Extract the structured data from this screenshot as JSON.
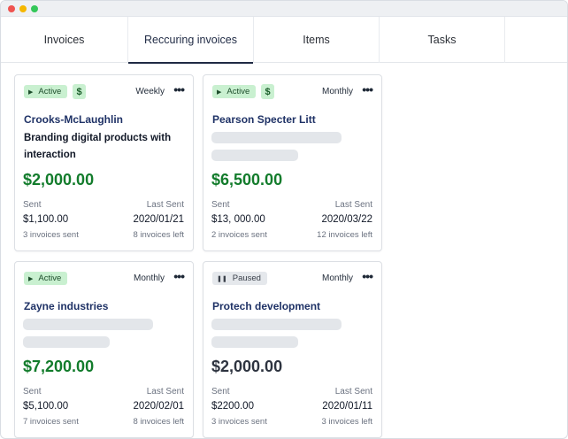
{
  "tabs": [
    {
      "label": "Invoices"
    },
    {
      "label": "Reccuring invoices"
    },
    {
      "label": "Items"
    },
    {
      "label": "Tasks"
    }
  ],
  "cards": [
    {
      "status": "Active",
      "status_icon": "play-icon",
      "has_dollar": true,
      "dollar": "$",
      "frequency": "Weekly",
      "menu": "•••",
      "client": "Crooks-McLaughlin",
      "project": "Branding digital products with interaction",
      "amount": "$2,000.00",
      "sent_label": "Sent",
      "last_sent_label": "Last Sent",
      "sent_value": "$1,100.00",
      "last_sent_value": "2020/01/21",
      "invoices_sent": "3 invoices sent",
      "invoices_left": "8 invoices left"
    },
    {
      "status": "Active",
      "status_icon": "play-icon",
      "has_dollar": true,
      "dollar": "$",
      "frequency": "Monthly",
      "menu": "•••",
      "client": "Pearson Specter Litt",
      "amount": "$6,500.00",
      "sent_label": "Sent",
      "last_sent_label": "Last Sent",
      "sent_value": "$13, 000.00",
      "last_sent_value": "2020/03/22",
      "invoices_sent": "2 invoices sent",
      "invoices_left": "12 invoices left"
    },
    {
      "status": "Active",
      "status_icon": "play-icon",
      "has_dollar": false,
      "frequency": "Monthly",
      "menu": "•••",
      "client": "Zayne industries",
      "amount": "$7,200.00",
      "sent_label": "Sent",
      "last_sent_label": "Last Sent",
      "sent_value": "$5,100.00",
      "last_sent_value": "2020/02/01",
      "invoices_sent": "7 invoices sent",
      "invoices_left": "8 invoices left"
    },
    {
      "status": "Paused",
      "status_icon": "pause-icon",
      "has_dollar": false,
      "frequency": "Monthly",
      "menu": "•••",
      "client": "Protech development",
      "amount": "$2,000.00",
      "sent_label": "Sent",
      "last_sent_label": "Last Sent",
      "sent_value": "$2200.00",
      "last_sent_value": "2020/01/11",
      "invoices_sent": "3 invoices sent",
      "invoices_left": "3 invoices left"
    }
  ],
  "colors": {
    "active_tab_underline": "#1f2a44",
    "active_badge": "#c9f0d0",
    "paused_badge": "#e5e8ec",
    "amount_active": "#137c2c",
    "client_name": "#1f3266"
  }
}
